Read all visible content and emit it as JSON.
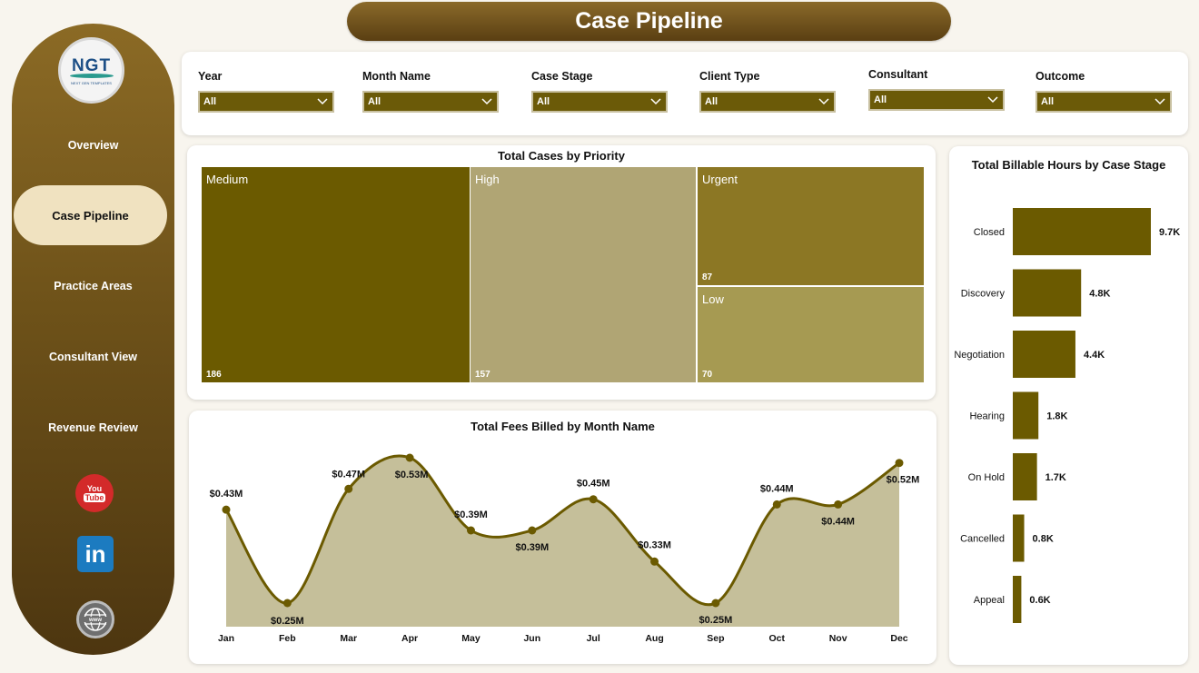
{
  "header": {
    "title": "Case Pipeline"
  },
  "sidebar": {
    "logo": {
      "text": "NGT",
      "subtext": "NEXT GEN TEMPLATES"
    },
    "items": [
      {
        "label": "Overview"
      },
      {
        "label": "Case Pipeline",
        "active": true
      },
      {
        "label": "Practice Areas"
      },
      {
        "label": "Consultant View"
      },
      {
        "label": "Revenue Review"
      }
    ],
    "social": {
      "youtube_top": "You",
      "youtube_bottom": "Tube",
      "linkedin": "in",
      "web": "www"
    }
  },
  "filters": [
    {
      "label": "Year",
      "value": "All"
    },
    {
      "label": "Month Name",
      "value": "All"
    },
    {
      "label": "Case Stage",
      "value": "All"
    },
    {
      "label": "Client Type",
      "value": "All"
    },
    {
      "label": "Consultant",
      "value": "All"
    },
    {
      "label": "Outcome",
      "value": "All"
    }
  ],
  "colors": {
    "dark": "#6b5a00",
    "light": "#b0a574",
    "mid": "#8c7724",
    "pale": "#a69a52",
    "area": "#c5bf9a"
  },
  "treemap": {
    "title": "Total Cases by Priority",
    "items": [
      {
        "name": "Medium",
        "value": "186"
      },
      {
        "name": "High",
        "value": "157"
      },
      {
        "name": "Urgent",
        "value": "87"
      },
      {
        "name": "Low",
        "value": "70"
      }
    ]
  },
  "chart_data": [
    {
      "type": "area",
      "title": "Total Fees Billed by Month Name",
      "x": [
        "Jan",
        "Feb",
        "Mar",
        "Apr",
        "May",
        "Jun",
        "Jul",
        "Aug",
        "Sep",
        "Oct",
        "Nov",
        "Dec"
      ],
      "values": [
        0.43,
        0.25,
        0.47,
        0.53,
        0.39,
        0.39,
        0.45,
        0.33,
        0.25,
        0.44,
        0.44,
        0.52
      ],
      "labels": [
        "$0.43M",
        "$0.25M",
        "$0.47M",
        "$0.53M",
        "$0.39M",
        "$0.39M",
        "$0.45M",
        "$0.33M",
        "$0.25M",
        "$0.44M",
        "$0.44M",
        "$0.52M"
      ]
    },
    {
      "type": "bar",
      "title": "Total Billable Hours by Case Stage",
      "categories": [
        "Closed",
        "Discovery",
        "Negotiation",
        "Hearing",
        "On Hold",
        "Cancelled",
        "Appeal"
      ],
      "values": [
        9.7,
        4.8,
        4.4,
        1.8,
        1.7,
        0.8,
        0.6
      ],
      "labels": [
        "9.7K",
        "4.8K",
        "4.4K",
        "1.8K",
        "1.7K",
        "0.8K",
        "0.6K"
      ]
    }
  ]
}
